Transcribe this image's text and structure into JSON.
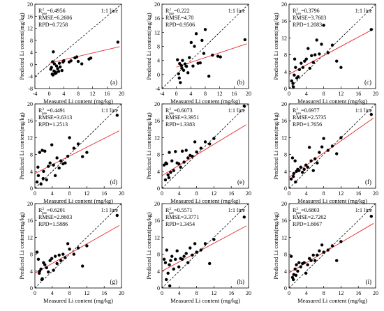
{
  "chart_data": [
    {
      "type": "scatter",
      "panel_label": "(a)",
      "title": "",
      "xlabel": "Measured Li content (mg/kg)",
      "ylabel": "Predicted Li content(mg/kg)",
      "xlim": [
        -4,
        20
      ],
      "ylim": [
        -8,
        20
      ],
      "xticks": [
        -4,
        0,
        4,
        8,
        12,
        16,
        20
      ],
      "yticks": [
        -8,
        -4,
        0,
        4,
        8,
        12,
        16,
        20
      ],
      "stats": {
        "r2_prefix": "R",
        "r2_sub": "pre",
        "r2_sup": "2",
        "r2_value": "=0.4956",
        "rmse": "RMSE=6.2606",
        "rpd": "RPD=0.7258"
      },
      "line_label": "1:1 line",
      "fit": {
        "slope": 0.28,
        "intercept": 0.45
      },
      "x": [
        0.4,
        0.8,
        1.0,
        1.3,
        1.6,
        2.0,
        2.3,
        0.6,
        1.1,
        1.9,
        2.6,
        3.0,
        3.5,
        4.0,
        2.8,
        1.4,
        0.9,
        3.8,
        5.5,
        6.0,
        7.1,
        7.6,
        8.0,
        9.0,
        11.0,
        11.5,
        1.7,
        19.0
      ],
      "y": [
        -1.6,
        -3.2,
        -3.5,
        -2.2,
        -3.0,
        -0.5,
        -1.4,
        -1.0,
        4.2,
        -2.8,
        -2.3,
        -0.8,
        -2.0,
        1.2,
        0.4,
        0.2,
        0.9,
        0.8,
        0.8,
        1.2,
        2.2,
        2.5,
        1.0,
        0.2,
        1.8,
        2.1,
        -2.5,
        7.4
      ]
    },
    {
      "type": "scatter",
      "panel_label": "(b)",
      "title": "",
      "xlabel": "Measured Li content (mg/kg)",
      "ylabel": "Predicted Li content(mg/kg)",
      "xlim": [
        -4,
        20
      ],
      "ylim": [
        -4,
        20
      ],
      "xticks": [
        -4,
        0,
        4,
        8,
        12,
        16,
        20
      ],
      "yticks": [
        -4,
        0,
        4,
        8,
        12,
        16,
        20
      ],
      "stats": {
        "r2_prefix": "R",
        "r2_sub": "pre",
        "r2_sup": "2",
        "r2_value": "=0.222",
        "rmse": "RMSE=4.78",
        "rpd": "RPD=0.9506"
      },
      "line_label": "1:1 line",
      "fit": {
        "slope": 0.34,
        "intercept": 2.1
      },
      "x": [
        0.3,
        0.6,
        0.9,
        1.1,
        1.4,
        1.7,
        2.0,
        2.4,
        2.8,
        3.2,
        3.6,
        4.1,
        4.6,
        5.0,
        5.5,
        6.0,
        6.6,
        7.1,
        7.6,
        8.0,
        9.0,
        10.0,
        11.5,
        12.2,
        0.8,
        1.5,
        19.0
      ],
      "y": [
        4.2,
        0.2,
        3.1,
        -2.3,
        2.5,
        4.0,
        1.2,
        3.0,
        2.3,
        0.5,
        4.8,
        9.1,
        2.4,
        8.0,
        11.6,
        3.2,
        3.3,
        9.7,
        6.0,
        12.8,
        -0.5,
        5.5,
        5.2,
        5.0,
        -1.0,
        1.8,
        9.9
      ]
    },
    {
      "type": "scatter",
      "panel_label": "(c)",
      "title": "",
      "xlabel": "Measured Li content (mg/kg)",
      "ylabel": "Predicted Li content(mg/kg)",
      "xlim": [
        0,
        20
      ],
      "ylim": [
        0,
        20
      ],
      "xticks": [
        0,
        4,
        8,
        12,
        16,
        20
      ],
      "yticks": [
        0,
        4,
        8,
        12,
        16,
        20
      ],
      "stats": {
        "r2_prefix": "R",
        "r2_sub": "pre",
        "r2_sup": "2",
        "r2_value": "=0.3796",
        "rmse": "RMSE=3.7603",
        "rpd": "RPD=1.2083"
      },
      "line_label": "1:1 line",
      "fit": {
        "slope": 0.55,
        "intercept": 3.4
      },
      "x": [
        0.6,
        0.9,
        1.2,
        1.5,
        1.8,
        2.1,
        2.4,
        2.8,
        3.2,
        3.6,
        4.0,
        4.4,
        4.8,
        5.2,
        5.6,
        6.0,
        6.4,
        7.0,
        7.5,
        8.0,
        9.0,
        10.0,
        11.0,
        12.0,
        1.0,
        1.3,
        19.0
      ],
      "y": [
        1.8,
        1.2,
        3.2,
        5.0,
        2.5,
        2.8,
        4.5,
        6.0,
        5.0,
        6.5,
        7.0,
        9.5,
        4.8,
        7.8,
        6.2,
        8.0,
        11.5,
        8.2,
        10.5,
        15.0,
        8.5,
        10.3,
        6.5,
        5.0,
        0.4,
        7.0,
        14.0
      ]
    },
    {
      "type": "scatter",
      "panel_label": "(d)",
      "title": "",
      "xlabel": "Measured Li content (mg/kg)",
      "ylabel": "Predicted Li content(mg/kg)",
      "xlim": [
        0,
        20
      ],
      "ylim": [
        0,
        20
      ],
      "xticks": [
        0,
        4,
        8,
        12,
        16,
        20
      ],
      "yticks": [
        0,
        4,
        8,
        12,
        16,
        20
      ],
      "stats": {
        "r2_prefix": "R",
        "r2_sub": "pre",
        "r2_sup": "2",
        "r2_value": "=0.4491",
        "rmse": "RMSE=3.6313",
        "rpd": "RPD=1.2513"
      },
      "line_label": "1:1 line",
      "fit": {
        "slope": 0.52,
        "intercept": 3.5
      },
      "x": [
        0.5,
        0.8,
        1.1,
        1.4,
        1.7,
        2.0,
        2.3,
        2.7,
        3.1,
        3.5,
        3.9,
        4.3,
        4.7,
        5.1,
        5.6,
        6.0,
        6.5,
        7.0,
        7.6,
        8.0,
        9.0,
        10.0,
        11.0,
        12.0,
        0.7,
        1.9,
        19.0
      ],
      "y": [
        1.5,
        3.0,
        8.5,
        1.0,
        9.0,
        4.0,
        8.8,
        2.0,
        5.2,
        6.0,
        10.3,
        5.5,
        3.0,
        7.2,
        4.8,
        6.5,
        5.8,
        6.0,
        7.6,
        12.0,
        9.5,
        10.5,
        7.5,
        8.5,
        5.0,
        2.3,
        17.3
      ]
    },
    {
      "type": "scatter",
      "panel_label": "(e)",
      "title": "",
      "xlabel": "Measured Li content (mg/kg)",
      "ylabel": "Predicted Li content(mg/kg)",
      "xlim": [
        0,
        20
      ],
      "ylim": [
        0,
        20
      ],
      "xticks": [
        0,
        4,
        8,
        12,
        16,
        20
      ],
      "yticks": [
        0,
        4,
        8,
        12,
        16,
        20
      ],
      "stats": {
        "r2_prefix": "R",
        "r2_sub": "pre",
        "r2_sup": "2",
        "r2_value": "=0.6073",
        "rmse": "RMSE=3.3951",
        "rpd": "RPD=1.3383"
      },
      "line_label": "1:1 line",
      "fit": {
        "slope": 0.62,
        "intercept": 3.0
      },
      "x": [
        0.5,
        0.8,
        1.1,
        1.4,
        1.7,
        2.0,
        2.3,
        2.7,
        3.1,
        3.5,
        3.9,
        4.3,
        4.7,
        5.1,
        5.6,
        6.0,
        6.5,
        7.0,
        7.6,
        8.0,
        9.0,
        10.0,
        11.0,
        12.0,
        0.9,
        1.6,
        19.0
      ],
      "y": [
        5.5,
        2.0,
        5.8,
        3.2,
        8.5,
        3.8,
        6.5,
        4.2,
        8.7,
        6.0,
        5.8,
        5.0,
        8.8,
        6.2,
        9.0,
        7.2,
        7.8,
        7.6,
        11.0,
        8.6,
        9.5,
        11.0,
        10.5,
        11.8,
        6.0,
        2.5,
        19.5
      ]
    },
    {
      "type": "scatter",
      "panel_label": "(f)",
      "title": "",
      "xlabel": "Measured Li content (mg/kg)",
      "ylabel": "Predicted Li content(mg/kg)",
      "xlim": [
        0,
        20
      ],
      "ylim": [
        0,
        20
      ],
      "xticks": [
        0,
        4,
        8,
        12,
        16,
        20
      ],
      "yticks": [
        0,
        4,
        8,
        12,
        16,
        20
      ],
      "stats": {
        "r2_prefix": "R",
        "r2_sub": "pre",
        "r2_sup": "2",
        "r2_value": "=0.6977",
        "rmse": "RMSE=2.5735",
        "rpd": "RPD=1.7656"
      },
      "line_label": "1:1 line",
      "fit": {
        "slope": 0.72,
        "intercept": 2.6
      },
      "x": [
        0.5,
        0.8,
        1.1,
        1.4,
        1.7,
        2.0,
        2.3,
        2.7,
        3.1,
        3.5,
        3.9,
        4.3,
        4.7,
        5.1,
        5.6,
        6.0,
        6.5,
        7.0,
        7.6,
        8.0,
        9.0,
        10.0,
        11.0,
        12.0,
        1.0,
        1.5,
        19.0
      ],
      "y": [
        2.2,
        7.2,
        3.5,
        6.5,
        4.0,
        4.5,
        4.2,
        5.0,
        3.8,
        4.5,
        5.5,
        5.0,
        9.7,
        6.5,
        4.2,
        7.0,
        6.0,
        8.5,
        9.8,
        11.8,
        9.0,
        10.0,
        8.2,
        12.0,
        2.8,
        1.5,
        17.5
      ]
    },
    {
      "type": "scatter",
      "panel_label": "(g)",
      "title": "",
      "xlabel": "Measured Li content (mg/kg)",
      "ylabel": "Predicted Li content(mg/kg)",
      "xlim": [
        0,
        20
      ],
      "ylim": [
        0,
        20
      ],
      "xticks": [
        0,
        4,
        8,
        12,
        16,
        20
      ],
      "yticks": [
        0,
        4,
        8,
        12,
        16,
        20
      ],
      "stats": {
        "r2_prefix": "R",
        "r2_sub": "pre",
        "r2_sup": "2",
        "r2_value": "=0.6201",
        "rmse": "RMSE=2.8603",
        "rpd": "RPD=1.5886"
      },
      "line_label": "1:1 line",
      "fit": {
        "slope": 0.58,
        "intercept": 3.5
      },
      "x": [
        0.5,
        0.8,
        1.1,
        1.4,
        1.7,
        2.0,
        2.3,
        2.7,
        3.1,
        3.5,
        3.9,
        4.3,
        4.7,
        5.1,
        5.6,
        6.0,
        6.5,
        7.0,
        7.6,
        8.0,
        9.0,
        10.0,
        11.0,
        12.0,
        1.0,
        1.6,
        19.0
      ],
      "y": [
        8.5,
        6.8,
        4.0,
        4.5,
        2.2,
        6.0,
        5.5,
        4.8,
        3.8,
        6.5,
        7.0,
        4.2,
        7.5,
        5.8,
        7.8,
        6.5,
        8.0,
        7.2,
        10.5,
        9.2,
        8.0,
        9.5,
        5.2,
        10.0,
        3.5,
        2.0,
        17.2
      ]
    },
    {
      "type": "scatter",
      "panel_label": "(h)",
      "title": "",
      "xlabel": "Measured Li content (mg/kg)",
      "ylabel": "Predicted Li content(mg/kg)",
      "xlim": [
        0,
        20
      ],
      "ylim": [
        0,
        20
      ],
      "xticks": [
        0,
        4,
        8,
        12,
        16,
        20
      ],
      "yticks": [
        0,
        4,
        8,
        12,
        16,
        20
      ],
      "stats": {
        "r2_prefix": "R",
        "r2_sub": "pre",
        "r2_sup": "2",
        "r2_value": "=0.5571",
        "rmse": "RMSE=3.3771",
        "rpd": "RPD=1.3454"
      },
      "line_label": "1:1 line",
      "fit": {
        "slope": 0.55,
        "intercept": 4.0
      },
      "x": [
        0.5,
        0.8,
        1.1,
        1.4,
        1.7,
        2.0,
        2.3,
        2.7,
        3.1,
        3.5,
        3.9,
        4.3,
        4.7,
        5.1,
        5.6,
        6.0,
        6.5,
        7.0,
        7.6,
        8.0,
        9.0,
        10.0,
        11.0,
        12.0,
        1.0,
        1.8,
        19.0
      ],
      "y": [
        6.8,
        6.0,
        9.0,
        3.5,
        5.5,
        6.5,
        7.5,
        4.5,
        6.8,
        8.8,
        5.0,
        7.0,
        6.8,
        7.5,
        8.2,
        6.0,
        9.5,
        7.8,
        10.5,
        8.5,
        9.0,
        10.5,
        5.8,
        11.5,
        2.0,
        0.5,
        16.8
      ]
    },
    {
      "type": "scatter",
      "panel_label": "(i)",
      "title": "",
      "xlabel": "Measured Li content (mg/kg)",
      "ylabel": "Predicted Li content(mg/kg)",
      "xlim": [
        0,
        20
      ],
      "ylim": [
        0,
        20
      ],
      "xticks": [
        0,
        4,
        8,
        12,
        16,
        20
      ],
      "yticks": [
        0,
        4,
        8,
        12,
        16,
        20
      ],
      "stats": {
        "r2_prefix": "R",
        "r2_sub": "pre",
        "r2_sup": "2",
        "r2_value": "=0.6803",
        "rmse": "RMSE=2.7262",
        "rpd": "RPD=1.6667"
      },
      "line_label": "1:1 line",
      "fit": {
        "slope": 0.6,
        "intercept": 3.6
      },
      "x": [
        0.5,
        0.8,
        1.1,
        1.4,
        1.7,
        2.0,
        2.3,
        2.7,
        3.1,
        3.5,
        3.9,
        4.3,
        4.7,
        5.1,
        5.6,
        6.0,
        6.5,
        7.0,
        7.6,
        8.0,
        9.0,
        10.0,
        11.0,
        12.0,
        1.0,
        1.6,
        19.0
      ],
      "y": [
        7.5,
        2.5,
        3.2,
        4.5,
        5.5,
        4.0,
        6.0,
        5.0,
        5.8,
        6.0,
        3.5,
        5.5,
        7.0,
        6.5,
        7.8,
        6.5,
        7.8,
        8.8,
        10.2,
        8.5,
        9.0,
        10.0,
        6.5,
        11.0,
        2.0,
        3.0,
        17.0
      ]
    }
  ]
}
